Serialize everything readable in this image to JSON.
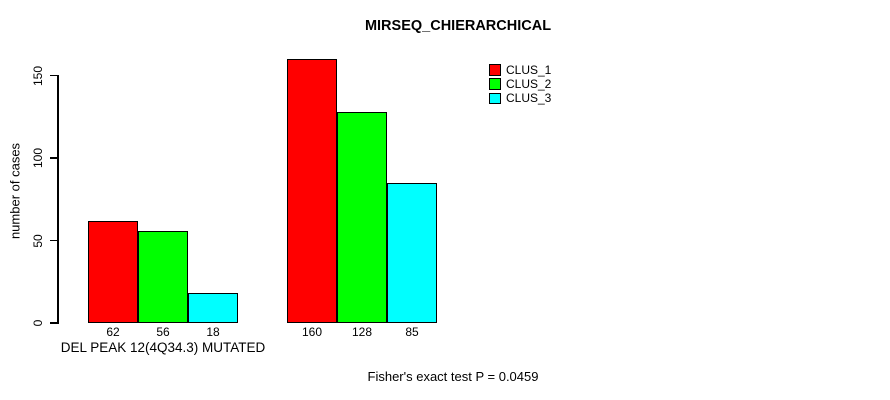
{
  "chart_data": {
    "type": "bar",
    "title": "MIRSEQ_CHIERARCHICAL",
    "ylabel": "number of cases",
    "xlabel": "",
    "group_labels": [
      "DEL PEAK 12(4Q34.3) MUTATED",
      ""
    ],
    "series": [
      {
        "name": "CLUS_1",
        "color": "#FF0000",
        "values": [
          62,
          160
        ]
      },
      {
        "name": "CLUS_2",
        "color": "#00FF00",
        "values": [
          56,
          128
        ]
      },
      {
        "name": "CLUS_3",
        "color": "#00FFFF",
        "values": [
          18,
          85
        ]
      }
    ],
    "bar_value_labels": [
      [
        62,
        56,
        18
      ],
      [
        160,
        128,
        85
      ]
    ],
    "yticks": [
      0,
      50,
      100,
      150
    ],
    "ylim": [
      0,
      160
    ],
    "grid": false,
    "legend_position": "top-right",
    "annotation": "Fisher's exact test P = 0.0459",
    "colors": {
      "background": "#FFFFFF",
      "axis": "#000000",
      "text": "#000000"
    }
  }
}
